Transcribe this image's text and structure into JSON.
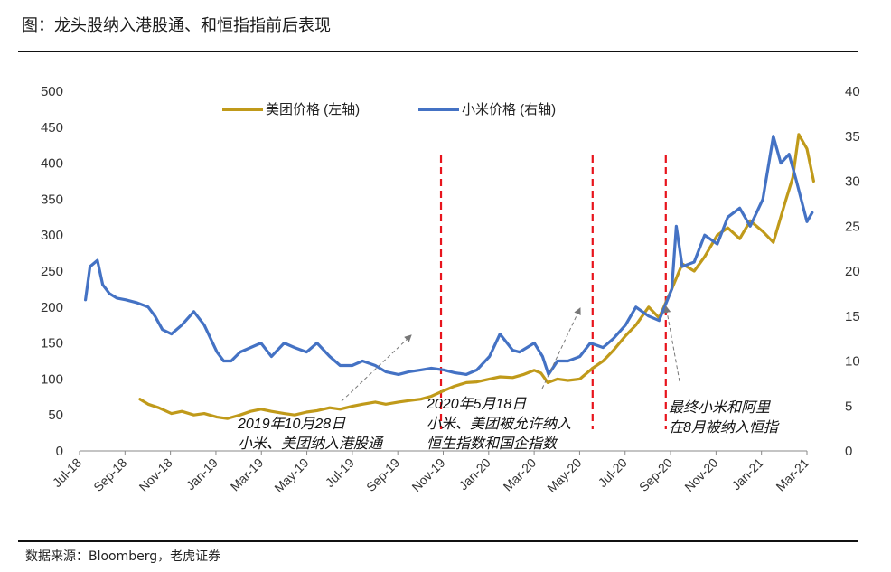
{
  "title": "图：龙头股纳入港股通、和恒指指前后表现",
  "source": "数据来源：Bloomberg，老虎证券",
  "colors": {
    "meituan": "#C09A1A",
    "xiaomi": "#4472C4",
    "event_line": "#E8141C",
    "arrow": "#777777",
    "axis": "#888888"
  },
  "chart_data": {
    "type": "line",
    "x_ticks": [
      "Jul-18",
      "Sep-18",
      "Nov-18",
      "Jan-19",
      "Mar-19",
      "May-19",
      "Jul-19",
      "Sep-19",
      "Nov-19",
      "Jan-20",
      "Mar-20",
      "May-20",
      "Jul-20",
      "Sep-20",
      "Nov-20",
      "Jan-21",
      "Mar-21"
    ],
    "left_axis": {
      "ticks": [
        0,
        50,
        100,
        150,
        200,
        250,
        300,
        350,
        400,
        450,
        500
      ],
      "ylim": [
        0,
        500
      ]
    },
    "right_axis": {
      "ticks": [
        "0",
        "5",
        "10",
        "15",
        "20",
        "25",
        "30",
        "35",
        "40"
      ],
      "ylim": [
        0,
        40
      ]
    },
    "series": [
      {
        "name": "美团价格 (左轴)",
        "axis": "left",
        "x": [
          "2018-09-20",
          "2018-10-01",
          "2018-10-15",
          "2018-11-01",
          "2018-11-15",
          "2018-12-01",
          "2018-12-15",
          "2019-01-01",
          "2019-01-15",
          "2019-02-01",
          "2019-02-15",
          "2019-03-01",
          "2019-03-15",
          "2019-04-01",
          "2019-04-15",
          "2019-05-01",
          "2019-05-15",
          "2019-06-01",
          "2019-06-15",
          "2019-07-01",
          "2019-07-15",
          "2019-08-01",
          "2019-08-15",
          "2019-09-01",
          "2019-09-15",
          "2019-10-01",
          "2019-10-15",
          "2019-10-28",
          "2019-11-15",
          "2019-12-01",
          "2019-12-15",
          "2020-01-01",
          "2020-01-15",
          "2020-02-01",
          "2020-02-15",
          "2020-03-01",
          "2020-03-10",
          "2020-03-19",
          "2020-04-01",
          "2020-04-15",
          "2020-05-01",
          "2020-05-18",
          "2020-06-01",
          "2020-06-15",
          "2020-07-01",
          "2020-07-15",
          "2020-08-01",
          "2020-08-15",
          "2020-09-01",
          "2020-09-15",
          "2020-10-01",
          "2020-10-15",
          "2020-11-01",
          "2020-11-15",
          "2020-12-01",
          "2020-12-15",
          "2021-01-01",
          "2021-01-15",
          "2021-02-01",
          "2021-02-10",
          "2021-02-18",
          "2021-03-01",
          "2021-03-10"
        ],
        "values": [
          72,
          65,
          60,
          52,
          55,
          50,
          52,
          47,
          45,
          50,
          55,
          58,
          55,
          52,
          50,
          54,
          56,
          60,
          58,
          62,
          65,
          68,
          65,
          68,
          70,
          72,
          76,
          82,
          90,
          95,
          96,
          100,
          103,
          102,
          106,
          112,
          108,
          95,
          100,
          98,
          100,
          115,
          125,
          140,
          160,
          175,
          200,
          185,
          225,
          260,
          250,
          270,
          300,
          310,
          295,
          320,
          305,
          290,
          350,
          380,
          440,
          420,
          375
        ]
      },
      {
        "name": "小米价格 (右轴)",
        "axis": "right",
        "x": [
          "2018-07-09",
          "2018-07-15",
          "2018-07-25",
          "2018-08-01",
          "2018-08-10",
          "2018-08-20",
          "2018-09-01",
          "2018-09-15",
          "2018-10-01",
          "2018-10-10",
          "2018-10-20",
          "2018-11-01",
          "2018-11-15",
          "2018-12-01",
          "2018-12-15",
          "2019-01-01",
          "2019-01-10",
          "2019-01-20",
          "2019-02-01",
          "2019-02-15",
          "2019-03-01",
          "2019-03-15",
          "2019-04-01",
          "2019-04-15",
          "2019-05-01",
          "2019-05-15",
          "2019-06-01",
          "2019-06-15",
          "2019-07-01",
          "2019-07-15",
          "2019-08-01",
          "2019-08-15",
          "2019-09-01",
          "2019-09-15",
          "2019-10-01",
          "2019-10-15",
          "2019-11-01",
          "2019-11-15",
          "2019-12-01",
          "2019-12-15",
          "2020-01-01",
          "2020-01-15",
          "2020-02-01",
          "2020-02-10",
          "2020-02-20",
          "2020-03-01",
          "2020-03-12",
          "2020-03-20",
          "2020-04-01",
          "2020-04-15",
          "2020-05-01",
          "2020-05-15",
          "2020-06-01",
          "2020-06-15",
          "2020-07-01",
          "2020-07-15",
          "2020-08-01",
          "2020-08-15",
          "2020-09-01",
          "2020-09-07",
          "2020-09-15",
          "2020-10-01",
          "2020-10-15",
          "2020-11-01",
          "2020-11-15",
          "2020-12-01",
          "2020-12-15",
          "2021-01-01",
          "2021-01-15",
          "2021-01-25",
          "2021-02-05",
          "2021-02-15",
          "2021-03-01",
          "2021-03-08"
        ],
        "values": [
          16.8,
          20.5,
          21.2,
          18.5,
          17.5,
          17.0,
          16.8,
          16.5,
          16.0,
          15.0,
          13.5,
          13.0,
          14.0,
          15.5,
          14.0,
          11.0,
          10.0,
          10.0,
          11.0,
          11.5,
          12.0,
          10.5,
          12.0,
          11.5,
          11.0,
          12.0,
          10.5,
          9.5,
          9.5,
          10.0,
          9.5,
          8.8,
          8.5,
          8.8,
          9.0,
          9.2,
          9.0,
          8.7,
          8.5,
          9.0,
          10.5,
          13.0,
          11.2,
          11.0,
          11.5,
          12.0,
          10.5,
          8.5,
          10.0,
          10.0,
          10.5,
          12.0,
          11.5,
          12.5,
          14.0,
          16.0,
          15.0,
          14.5,
          18.0,
          25.0,
          20.5,
          21.0,
          24.0,
          23.0,
          26.0,
          27.0,
          25.0,
          28.0,
          35.0,
          32.0,
          33.0,
          30.0,
          25.5,
          26.5
        ]
      }
    ],
    "event_lines": [
      "2019-10-28",
      "2020-05-18",
      "2020-08-24"
    ],
    "annotations": [
      {
        "text_lines": [
          "2019年10月28日",
          "小米、美团纳入港股通"
        ],
        "x": "2019-10-28"
      },
      {
        "text_lines": [
          "2020年5月18日",
          "小米、美团被允许纳入",
          "恒生指数和国企指数"
        ],
        "x": "2020-05-18"
      },
      {
        "text_lines": [
          "最终小米和阿里",
          "在8月被纳入恒指"
        ],
        "x": "2020-08-24"
      }
    ]
  }
}
